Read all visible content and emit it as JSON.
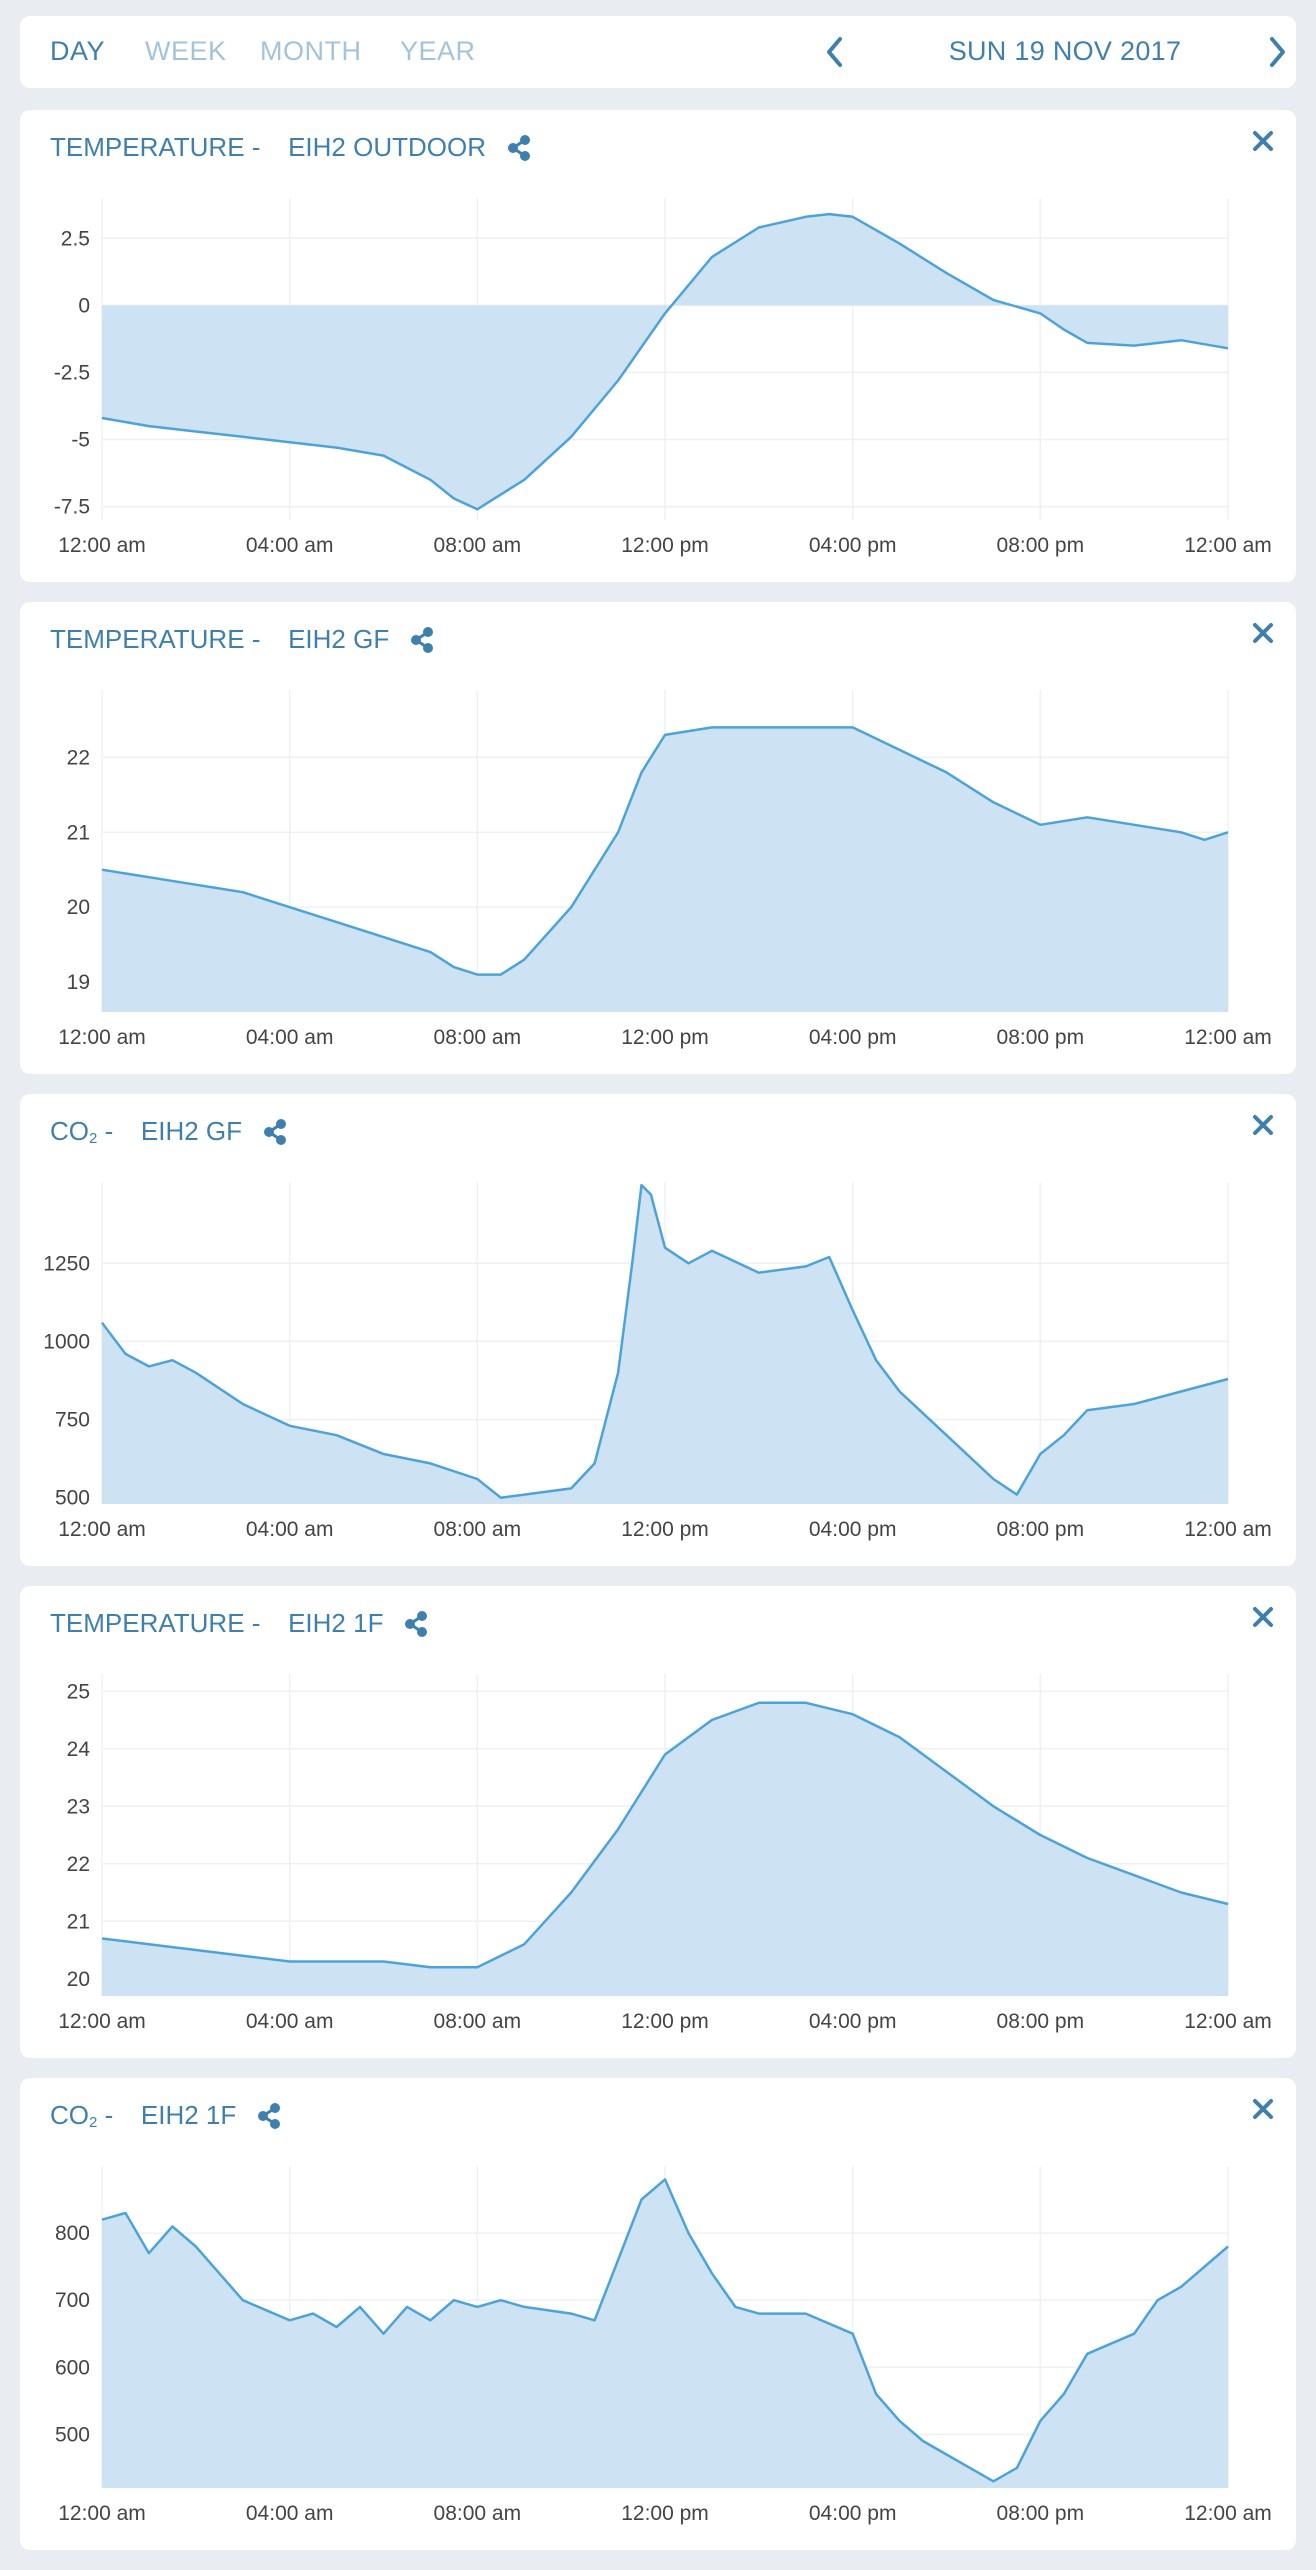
{
  "header": {
    "periods": [
      "DAY",
      "WEEK",
      "MONTH",
      "YEAR"
    ],
    "active_period": "DAY",
    "date": "SUN 19 NOV 2017"
  },
  "colors": {
    "accent": "#3f7fae",
    "line": "#4da3d8",
    "fill": "#cde3f4",
    "inactive": "#a3c3dc"
  },
  "chart_data": [
    {
      "type": "area",
      "title_parts": [
        "TEMPERATURE",
        "EIH2 OUTDOOR"
      ],
      "x_labels": [
        "12:00 am",
        "04:00 am",
        "08:00 am",
        "12:00 pm",
        "04:00 pm",
        "08:00 pm",
        "12:00 am"
      ],
      "x_hours": [
        0,
        1,
        2,
        3,
        4,
        5,
        6,
        7,
        7.5,
        8,
        9,
        10,
        11,
        12,
        13,
        14,
        15,
        15.5,
        16,
        17,
        18,
        19,
        20,
        20.5,
        21,
        22,
        23,
        24
      ],
      "values": [
        -4.2,
        -4.5,
        -4.7,
        -4.9,
        -5.1,
        -5.3,
        -5.6,
        -6.5,
        -7.2,
        -7.6,
        -6.5,
        -4.9,
        -2.8,
        -0.3,
        1.8,
        2.9,
        3.3,
        3.4,
        3.3,
        2.3,
        1.2,
        0.2,
        -0.3,
        -0.9,
        -1.4,
        -1.5,
        -1.3,
        -1.6
      ],
      "y_ticks": [
        2.5,
        0,
        -2.5,
        -5,
        -7.5
      ],
      "ylim": [
        -8,
        4
      ],
      "baseline": 0,
      "grid": true
    },
    {
      "type": "area",
      "title_parts": [
        "TEMPERATURE",
        "EIH2 GF"
      ],
      "x_labels": [
        "12:00 am",
        "04:00 am",
        "08:00 am",
        "12:00 pm",
        "04:00 pm",
        "08:00 pm",
        "12:00 am"
      ],
      "x_hours": [
        0,
        1,
        2,
        3,
        4,
        5,
        6,
        7,
        7.5,
        8,
        8.5,
        9,
        10,
        11,
        11.5,
        12,
        13,
        14,
        15,
        16,
        17,
        18,
        19,
        20,
        21,
        22,
        23,
        23.5,
        24
      ],
      "values": [
        20.5,
        20.4,
        20.3,
        20.2,
        20.0,
        19.8,
        19.6,
        19.4,
        19.2,
        19.1,
        19.1,
        19.3,
        20.0,
        21.0,
        21.8,
        22.3,
        22.4,
        22.4,
        22.4,
        22.4,
        22.1,
        21.8,
        21.4,
        21.1,
        21.2,
        21.1,
        21.0,
        20.9,
        21.0
      ],
      "y_ticks": [
        22,
        21,
        20,
        19
      ],
      "ylim": [
        18.6,
        22.9
      ],
      "baseline": "bottom",
      "grid": true
    },
    {
      "type": "area",
      "title_parts": [
        "CO",
        "EIH2 GF"
      ],
      "title_subscript": "2",
      "x_labels": [
        "12:00 am",
        "04:00 am",
        "08:00 am",
        "12:00 pm",
        "04:00 pm",
        "08:00 pm",
        "12:00 am"
      ],
      "x_hours": [
        0,
        0.5,
        1,
        1.5,
        2,
        3,
        4,
        5,
        6,
        7,
        8,
        8.5,
        9,
        10,
        10.5,
        11,
        11.3,
        11.5,
        11.7,
        12,
        12.5,
        13,
        14,
        15,
        15.5,
        16,
        16.5,
        17,
        18,
        19,
        19.5,
        20,
        20.5,
        21,
        22,
        23,
        24
      ],
      "values": [
        1060,
        960,
        920,
        940,
        900,
        800,
        730,
        700,
        640,
        610,
        560,
        500,
        510,
        530,
        610,
        900,
        1250,
        1500,
        1470,
        1300,
        1250,
        1290,
        1220,
        1240,
        1270,
        1100,
        940,
        840,
        700,
        560,
        510,
        640,
        700,
        780,
        800,
        840,
        880
      ],
      "y_ticks": [
        1250,
        1000,
        750,
        500
      ],
      "ylim": [
        480,
        1510
      ],
      "baseline": "bottom",
      "grid": true
    },
    {
      "type": "area",
      "title_parts": [
        "TEMPERATURE",
        "EIH2 1F"
      ],
      "x_labels": [
        "12:00 am",
        "04:00 am",
        "08:00 am",
        "12:00 pm",
        "04:00 pm",
        "08:00 pm",
        "12:00 am"
      ],
      "x_hours": [
        0,
        1,
        2,
        3,
        4,
        5,
        6,
        7,
        8,
        9,
        10,
        11,
        12,
        13,
        14,
        15,
        16,
        17,
        18,
        19,
        20,
        21,
        22,
        23,
        24
      ],
      "values": [
        20.7,
        20.6,
        20.5,
        20.4,
        20.3,
        20.3,
        20.3,
        20.2,
        20.2,
        20.6,
        21.5,
        22.6,
        23.9,
        24.5,
        24.8,
        24.8,
        24.6,
        24.2,
        23.6,
        23.0,
        22.5,
        22.1,
        21.8,
        21.5,
        21.3
      ],
      "y_ticks": [
        25,
        24,
        23,
        22,
        21,
        20
      ],
      "ylim": [
        19.7,
        25.3
      ],
      "baseline": "bottom",
      "grid": true
    },
    {
      "type": "area",
      "title_parts": [
        "CO",
        "EIH2 1F"
      ],
      "title_subscript": "2",
      "x_labels": [
        "12:00 am",
        "04:00 am",
        "08:00 am",
        "12:00 pm",
        "04:00 pm",
        "08:00 pm",
        "12:00 am"
      ],
      "x_hours": [
        0,
        0.5,
        1,
        1.5,
        2,
        2.5,
        3,
        4,
        4.5,
        5,
        5.5,
        6,
        6.5,
        7,
        7.5,
        8,
        8.5,
        9,
        10,
        10.5,
        11,
        11.5,
        12,
        12.5,
        13,
        13.5,
        14,
        15,
        16,
        16.5,
        17,
        17.5,
        18,
        18.5,
        19,
        19.5,
        20,
        20.5,
        21,
        22,
        22.5,
        23,
        24
      ],
      "values": [
        820,
        830,
        770,
        810,
        780,
        740,
        700,
        670,
        680,
        660,
        690,
        650,
        690,
        670,
        700,
        690,
        700,
        690,
        680,
        670,
        760,
        850,
        880,
        800,
        740,
        690,
        680,
        680,
        650,
        560,
        520,
        490,
        470,
        450,
        430,
        450,
        520,
        560,
        620,
        650,
        700,
        720,
        780
      ],
      "y_ticks": [
        800,
        700,
        600,
        500
      ],
      "ylim": [
        420,
        900
      ],
      "baseline": "bottom",
      "grid": true
    }
  ]
}
